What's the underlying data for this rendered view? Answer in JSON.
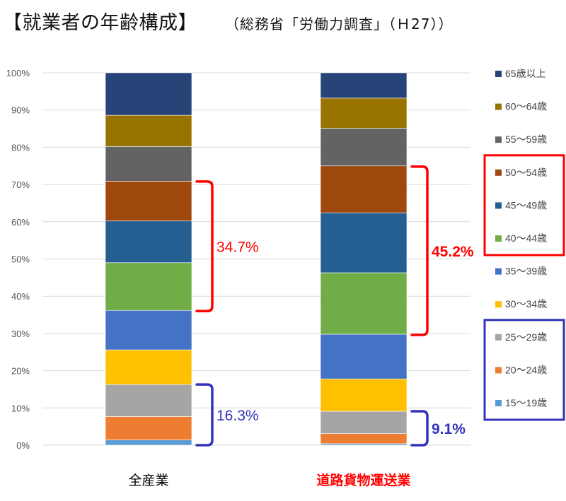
{
  "title": "【就業者の年齢構成】",
  "subtitle": "（総務省「労働力調査」（Ｈ27））",
  "chart_data": {
    "type": "stacked_bar_100",
    "y_ticks": [
      "0%",
      "10%",
      "20%",
      "30%",
      "40%",
      "50%",
      "60%",
      "70%",
      "80%",
      "90%",
      "100%"
    ],
    "ylim": [
      0,
      100
    ],
    "gridlines": true,
    "legend_position": "right",
    "categories": [
      {
        "label": "全産業",
        "color": "#000000",
        "bold": false
      },
      {
        "label": "道路貨物運送業",
        "color": "#ff0000",
        "bold": true
      }
    ],
    "series": [
      {
        "name": "15〜19歳",
        "color": "#5b9bd5",
        "values": [
          1.4,
          0.4
        ]
      },
      {
        "name": "20〜24歳",
        "color": "#ed7d31",
        "values": [
          6.3,
          2.7
        ]
      },
      {
        "name": "25〜29歳",
        "color": "#a5a5a5",
        "values": [
          8.6,
          6.0
        ]
      },
      {
        "name": "30〜34歳",
        "color": "#ffc000",
        "values": [
          9.3,
          8.7
        ]
      },
      {
        "name": "35〜39歳",
        "color": "#4472c4",
        "values": [
          10.6,
          12.0
        ]
      },
      {
        "name": "40〜44歳",
        "color": "#70ad47",
        "values": [
          12.8,
          16.5
        ]
      },
      {
        "name": "45〜49歳",
        "color": "#255e91",
        "values": [
          11.2,
          16.1
        ]
      },
      {
        "name": "50〜54歳",
        "color": "#9e480e",
        "values": [
          10.7,
          12.6
        ]
      },
      {
        "name": "55〜59歳",
        "color": "#636363",
        "values": [
          9.3,
          10.1
        ]
      },
      {
        "name": "60〜64歳",
        "color": "#997300",
        "values": [
          8.4,
          8.1
        ]
      },
      {
        "name": "65歳以上",
        "color": "#264478",
        "values": [
          11.4,
          6.8
        ]
      }
    ],
    "annotations": [
      {
        "text": "34.7%",
        "category": 0,
        "from": 36.0,
        "to": 70.8,
        "color": "#ff0000",
        "bold": false
      },
      {
        "text": "16.3%",
        "category": 0,
        "from": 0,
        "to": 16.3,
        "color": "#3333bb",
        "bold": false
      },
      {
        "text": "45.2%",
        "category": 1,
        "from": 29.6,
        "to": 74.8,
        "color": "#ff0000",
        "bold": true
      },
      {
        "text": "9.1%",
        "category": 1,
        "from": 0,
        "to": 9.1,
        "color": "#3333bb",
        "bold": true
      }
    ],
    "legend_groups": [
      {
        "color": "#ff0000",
        "series": [
          "50〜54歳",
          "45〜49歳",
          "40〜44歳"
        ]
      },
      {
        "color": "#3333bb",
        "series": [
          "25〜29歳",
          "20〜24歳",
          "15〜19歳"
        ]
      }
    ]
  }
}
